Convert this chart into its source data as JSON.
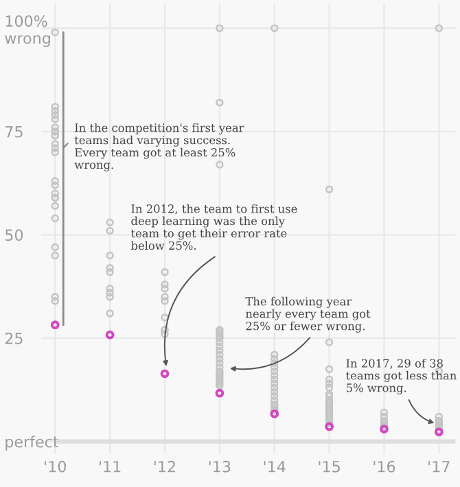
{
  "chart_data": {
    "type": "scatter",
    "marker": "circle",
    "grid": true,
    "xlim": [
      2009.75,
      2017.3
    ],
    "ylim": [
      -3,
      106
    ],
    "xticks": [
      {
        "value": 2010,
        "label": "'10"
      },
      {
        "value": 2011,
        "label": "'11"
      },
      {
        "value": 2012,
        "label": "'12"
      },
      {
        "value": 2013,
        "label": "'13"
      },
      {
        "value": 2014,
        "label": "'14"
      },
      {
        "value": 2015,
        "label": "'15"
      },
      {
        "value": 2016,
        "label": "'16"
      },
      {
        "value": 2017,
        "label": "'17"
      }
    ],
    "yticks": [
      {
        "value": 0,
        "label": "perfect"
      },
      25,
      50,
      75,
      {
        "value": 100,
        "label": "100%\nwrong"
      }
    ],
    "series": [
      {
        "color": "#c4c4c4",
        "x": [
          2010,
          2010,
          2010,
          2010,
          2010,
          2010,
          2010,
          2010,
          2010,
          2010,
          2010,
          2010,
          2010,
          2010,
          2010,
          2010,
          2010,
          2010,
          2010,
          2010,
          2010,
          2010,
          2010,
          2010,
          2011,
          2011,
          2011,
          2011,
          2011,
          2011,
          2011,
          2011,
          2011,
          2012,
          2012,
          2012,
          2012,
          2012,
          2012,
          2012,
          2012,
          2012,
          2013,
          2013,
          2013,
          2013,
          2013,
          2013,
          2013,
          2013,
          2013,
          2013,
          2013,
          2013,
          2013,
          2013,
          2013,
          2013,
          2013,
          2013,
          2013,
          2013,
          2013,
          2013,
          2013,
          2014,
          2014,
          2014,
          2014,
          2014,
          2014,
          2014,
          2014,
          2014,
          2014,
          2014,
          2014,
          2014,
          2014,
          2014,
          2014,
          2014,
          2015,
          2015,
          2015,
          2015,
          2015,
          2015,
          2015,
          2015,
          2015,
          2015,
          2015,
          2015,
          2015,
          2015,
          2015,
          2015,
          2015,
          2015,
          2015,
          2015,
          2016,
          2016,
          2016,
          2016,
          2016,
          2016,
          2017,
          2017,
          2017,
          2017,
          2017,
          2017,
          2017,
          2017
        ],
        "values": [
          99,
          81,
          80,
          79,
          78,
          76,
          75,
          75,
          74,
          74,
          72,
          71,
          70,
          63,
          62,
          60,
          59,
          59,
          57,
          54,
          47,
          45,
          35,
          34,
          53,
          51,
          45,
          42,
          41,
          37,
          36,
          35,
          31,
          41,
          38,
          37,
          35,
          34,
          30,
          27,
          27,
          26,
          100,
          82,
          67,
          27,
          26.5,
          26,
          25.5,
          25,
          24,
          23,
          22,
          21,
          20,
          19,
          18,
          17,
          16.5,
          16,
          15.5,
          15,
          14.5,
          14,
          13.5,
          100,
          21,
          20,
          19,
          18,
          17,
          16,
          15,
          14,
          13,
          12,
          11,
          10,
          9,
          8.5,
          8,
          7.5,
          61,
          24,
          17.5,
          15,
          14,
          13,
          11.5,
          11,
          10,
          9.5,
          9,
          8.5,
          8,
          7.5,
          7,
          6.5,
          6,
          5.5,
          5,
          4.5,
          7,
          6,
          5,
          4.5,
          4,
          3.5,
          100,
          17,
          6,
          5,
          4.5,
          4,
          3.5,
          2.7
        ]
      },
      {
        "color": "#d147c2",
        "x": [
          2010,
          2011,
          2012,
          2013,
          2014,
          2015,
          2016,
          2017
        ],
        "values": [
          28.2,
          25.8,
          16.4,
          11.7,
          6.7,
          3.6,
          3.0,
          2.3
        ]
      }
    ],
    "annotations": [
      {
        "text": "In the competition's first year\nteams had varying success.\nEvery team got at least 25%\nwrong.",
        "x": 2010,
        "y": 71
      },
      {
        "text": "In 2012, the team to first use\ndeep learning was the only\nteam to get their error rate\nbelow 25%.",
        "x": 2012,
        "y": 16.4
      },
      {
        "text": "The following year\nnearly every team got\n25% or fewer wrong.",
        "x": 2013,
        "y": 18
      },
      {
        "text": "In 2017, 29 of 38\nteams got less than\n5% wrong.",
        "x": 2017,
        "y": 4
      }
    ]
  }
}
